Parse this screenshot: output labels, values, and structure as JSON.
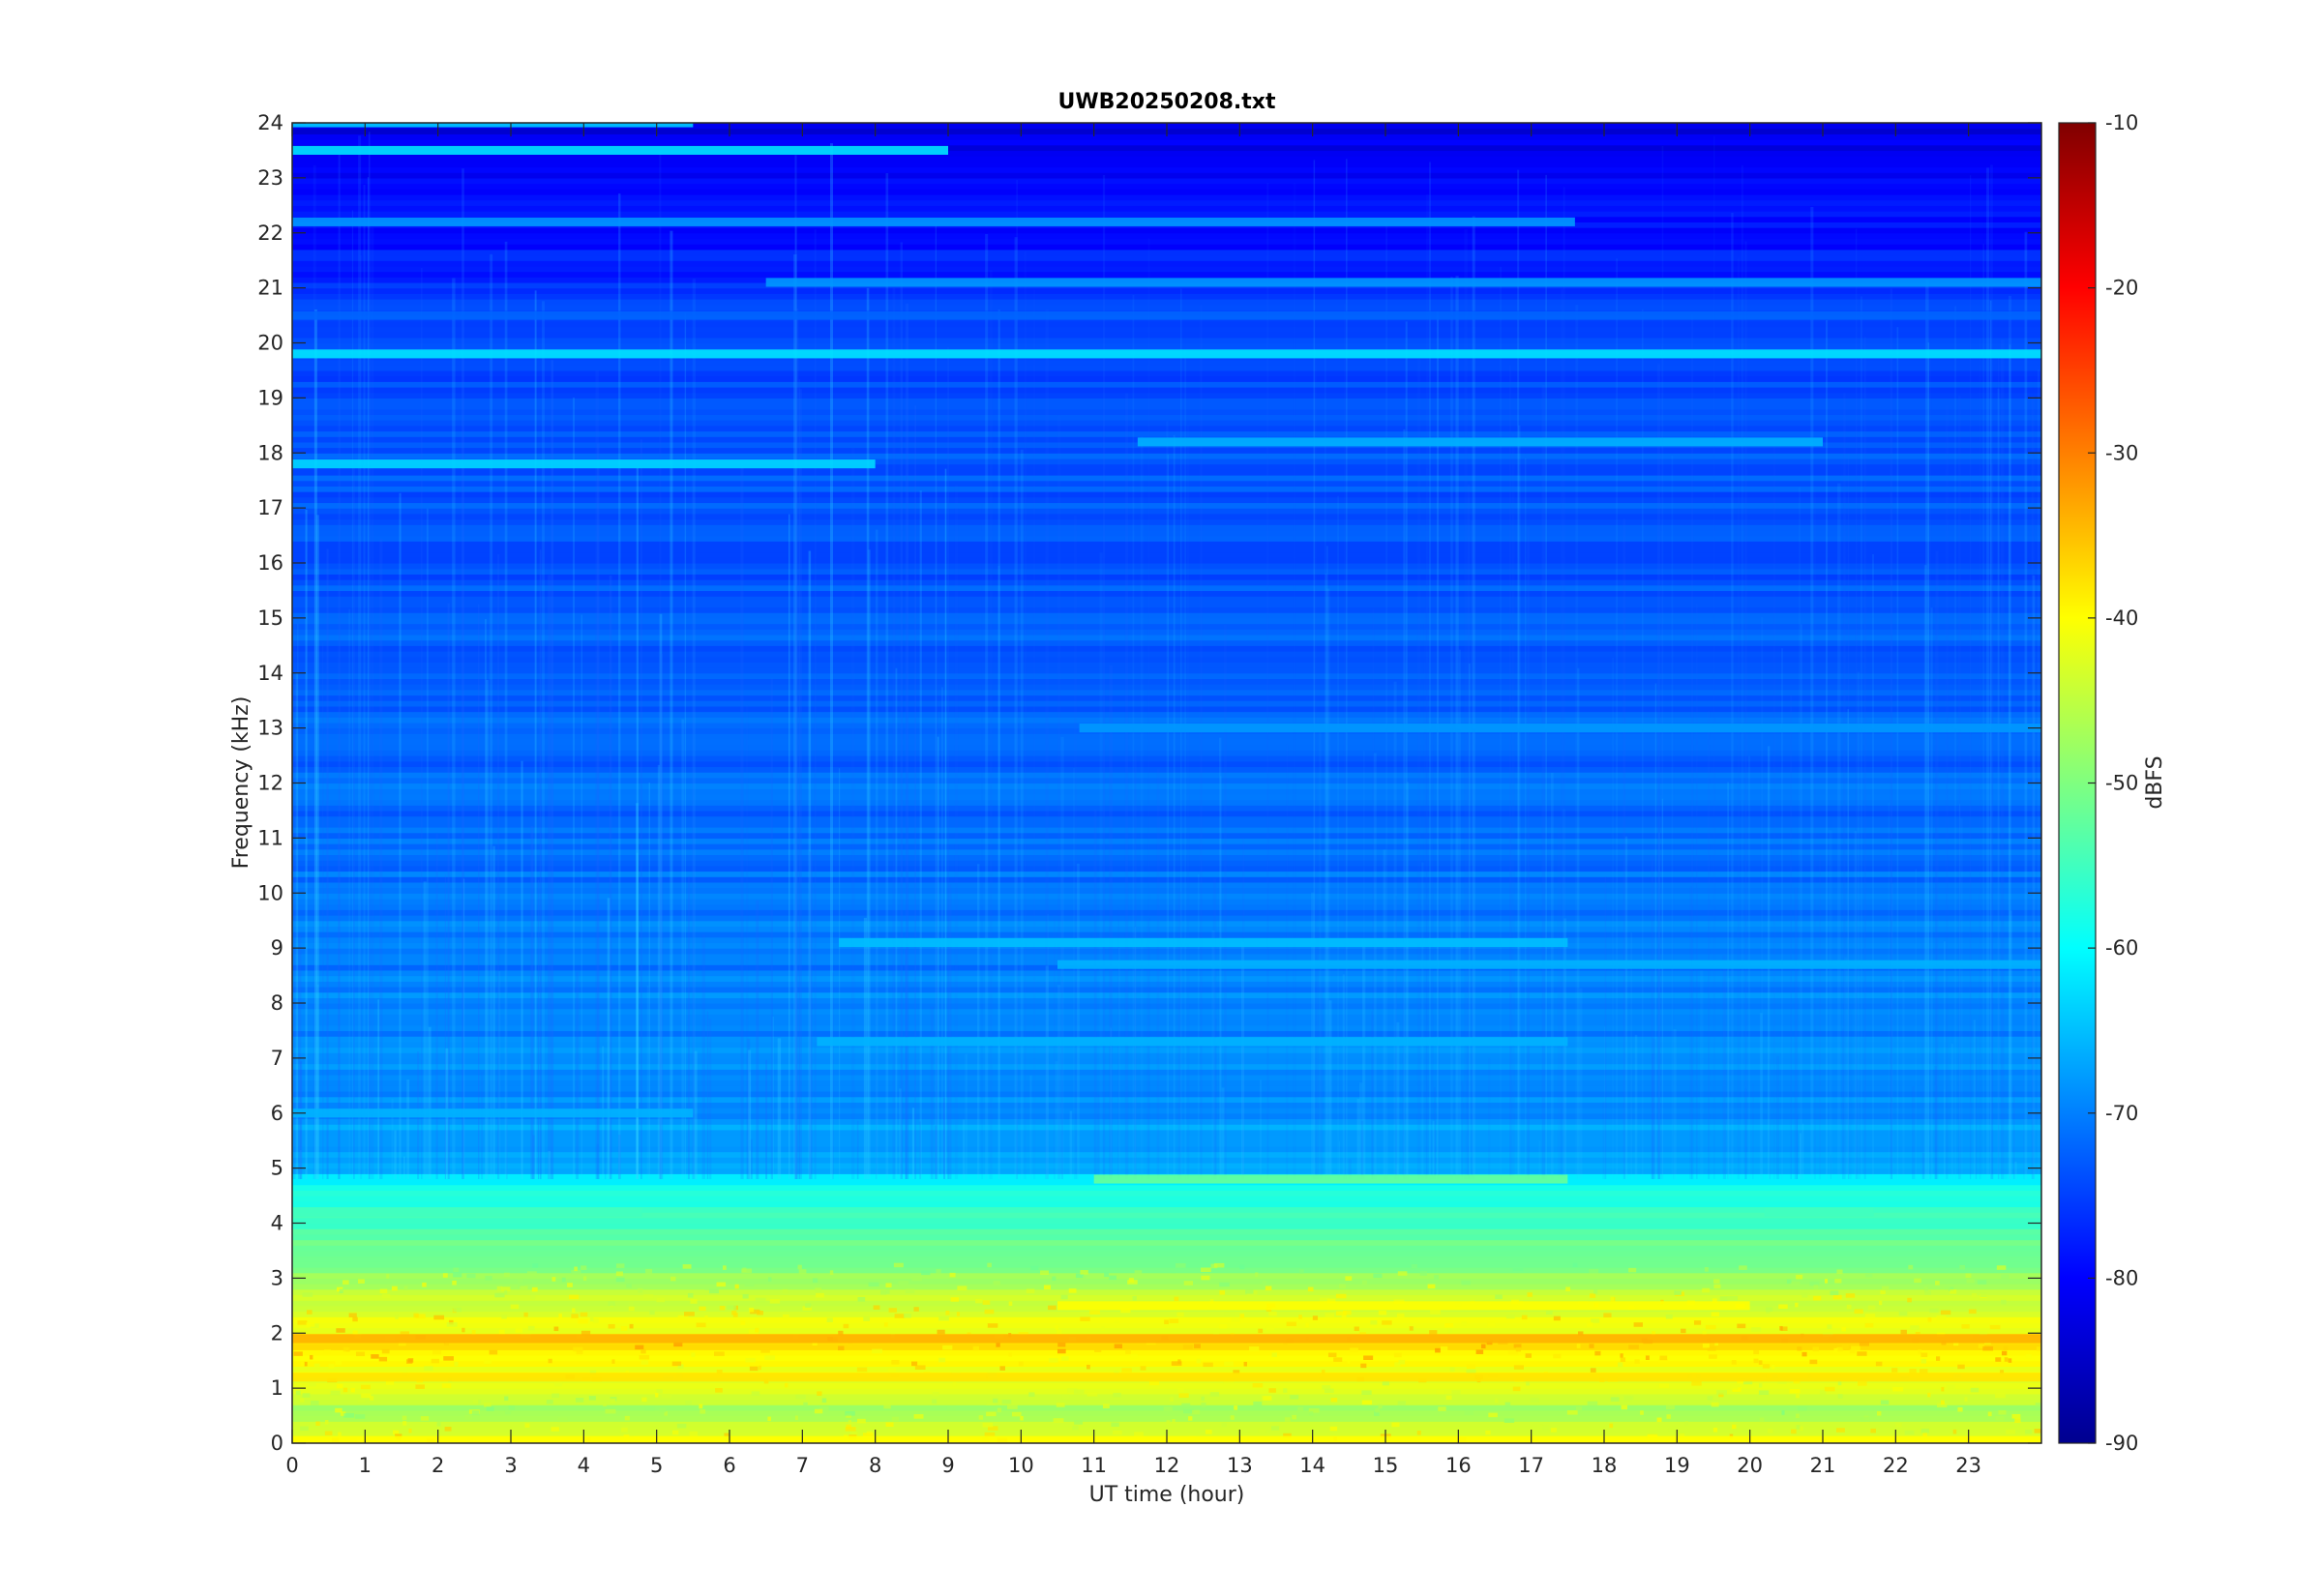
{
  "chart_data": {
    "type": "heatmap",
    "title": "UWB20250208.txt",
    "xlabel": "UT time (hour)",
    "ylabel": "Frequency (kHz)",
    "xlim": [
      0,
      24
    ],
    "ylim": [
      0,
      24
    ],
    "x_ticks": [
      0,
      1,
      2,
      3,
      4,
      5,
      6,
      7,
      8,
      9,
      10,
      11,
      12,
      13,
      14,
      15,
      16,
      17,
      18,
      19,
      20,
      21,
      22,
      23
    ],
    "y_ticks": [
      0,
      1,
      2,
      3,
      4,
      5,
      6,
      7,
      8,
      9,
      10,
      11,
      12,
      13,
      14,
      15,
      16,
      17,
      18,
      19,
      20,
      21,
      22,
      23,
      24
    ],
    "colorbar": {
      "label": "dBFS",
      "range": [
        -90,
        -10
      ],
      "ticks": [
        -10,
        -20,
        -30,
        -40,
        -50,
        -60,
        -70,
        -80,
        -90
      ],
      "colormap": "jet"
    },
    "background_level_by_freq_kHz": [
      {
        "f": 0.0,
        "dB": -40
      },
      {
        "f": 0.5,
        "dB": -48
      },
      {
        "f": 1.0,
        "dB": -43
      },
      {
        "f": 1.7,
        "dB": -38
      },
      {
        "f": 2.3,
        "dB": -42
      },
      {
        "f": 3.0,
        "dB": -48
      },
      {
        "f": 4.0,
        "dB": -55
      },
      {
        "f": 4.8,
        "dB": -60
      },
      {
        "f": 5.0,
        "dB": -67
      },
      {
        "f": 7.0,
        "dB": -69
      },
      {
        "f": 10.0,
        "dB": -71
      },
      {
        "f": 15.0,
        "dB": -73
      },
      {
        "f": 20.0,
        "dB": -74
      },
      {
        "f": 22.0,
        "dB": -79
      },
      {
        "f": 24.0,
        "dB": -82
      }
    ],
    "persistent_lines": [
      {
        "freq_kHz": 19.8,
        "t_start": 0,
        "t_end": 24,
        "dB": -62
      },
      {
        "freq_kHz": 22.2,
        "t_start": 0,
        "t_end": 17.6,
        "dB": -68
      },
      {
        "freq_kHz": 21.1,
        "t_start": 6.5,
        "t_end": 24,
        "dB": -68
      },
      {
        "freq_kHz": 18.2,
        "t_start": 11.6,
        "t_end": 21,
        "dB": -66
      },
      {
        "freq_kHz": 17.8,
        "t_start": 0,
        "t_end": 8,
        "dB": -63
      },
      {
        "freq_kHz": 23.5,
        "t_start": 0,
        "t_end": 9,
        "dB": -62
      },
      {
        "freq_kHz": 24.0,
        "t_start": 0,
        "t_end": 5.5,
        "dB": -64
      },
      {
        "freq_kHz": 20.5,
        "t_start": 0,
        "t_end": 24,
        "dB": -72
      },
      {
        "freq_kHz": 13.0,
        "t_start": 10.8,
        "t_end": 24,
        "dB": -68
      },
      {
        "freq_kHz": 9.1,
        "t_start": 7.5,
        "t_end": 17.5,
        "dB": -65
      },
      {
        "freq_kHz": 8.7,
        "t_start": 10.5,
        "t_end": 24,
        "dB": -66
      },
      {
        "freq_kHz": 7.3,
        "t_start": 7.2,
        "t_end": 17.5,
        "dB": -66
      },
      {
        "freq_kHz": 6.0,
        "t_start": 0,
        "t_end": 5.5,
        "dB": -66
      },
      {
        "freq_kHz": 4.8,
        "t_start": 11,
        "t_end": 17.5,
        "dB": -52
      },
      {
        "freq_kHz": 4.2,
        "t_start": 0,
        "t_end": 4.8,
        "dB": -55
      },
      {
        "freq_kHz": 4.2,
        "t_start": 20.2,
        "t_end": 21.7,
        "dB": -55
      },
      {
        "freq_kHz": 2.5,
        "t_start": 10.5,
        "t_end": 20,
        "dB": -40
      },
      {
        "freq_kHz": 1.9,
        "t_start": 0,
        "t_end": 24,
        "dB": -34
      },
      {
        "freq_kHz": 1.2,
        "t_start": 0,
        "t_end": 24,
        "dB": -38
      },
      {
        "freq_kHz": 0.05,
        "t_start": 0,
        "t_end": 24,
        "dB": -40
      }
    ],
    "grid": false
  }
}
